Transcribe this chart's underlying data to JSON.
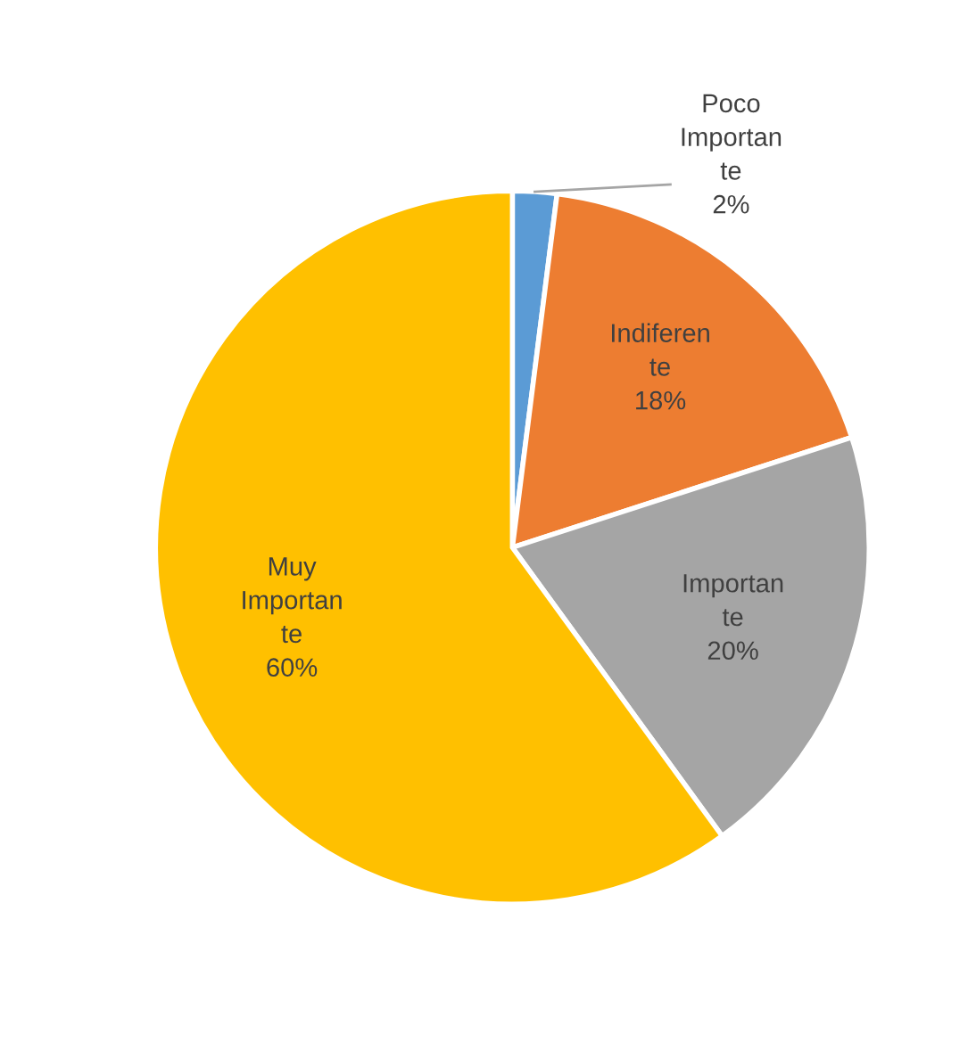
{
  "chart_data": {
    "type": "pie",
    "categories": [
      "Poco\nImportan\nte",
      "Indiferen\nte",
      "Importan\nte",
      "Muy\nImportan\nte"
    ],
    "values": [
      2,
      18,
      20,
      60
    ],
    "colors": [
      "#5b9bd5",
      "#ed7d31",
      "#a5a5a5",
      "#ffc000"
    ],
    "value_labels": [
      "2%",
      "18%",
      "20%",
      "60%"
    ],
    "legend": false
  }
}
